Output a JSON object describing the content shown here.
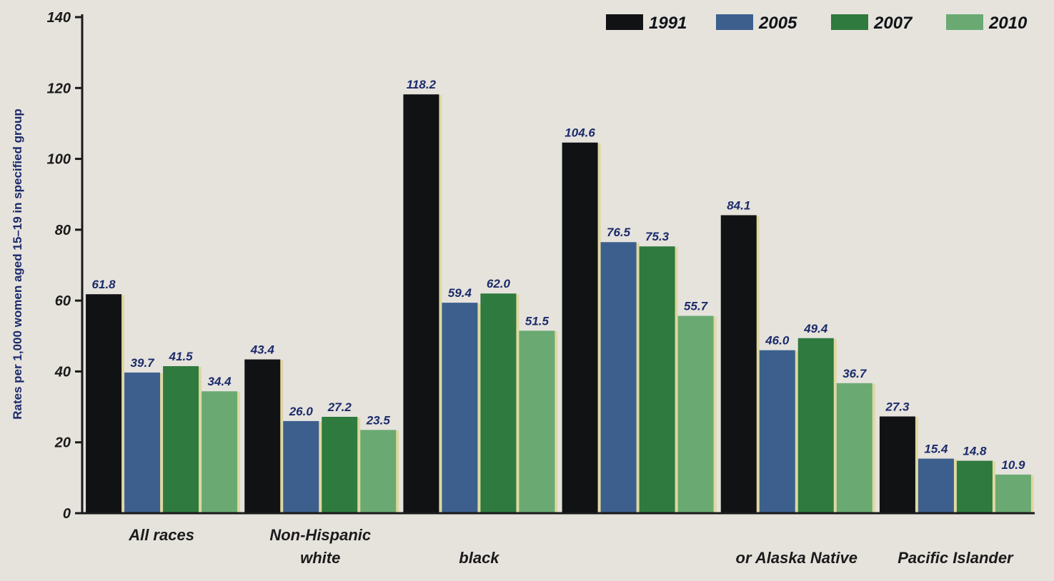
{
  "chart_data": {
    "type": "bar",
    "ylabel": "Rates per 1,000 women aged 15–19 in specified group",
    "xlabel": "",
    "ylim": [
      0,
      140
    ],
    "yticks": [
      0,
      20,
      40,
      60,
      80,
      100,
      120,
      140
    ],
    "grid": false,
    "legend_position": "top-right",
    "categories": [
      [
        "All races"
      ],
      [
        "Non-Hispanic",
        "white"
      ],
      [
        "",
        "black"
      ],
      [
        ""
      ],
      [
        "",
        "or Alaska Native"
      ],
      [
        "",
        "Pacific Islander"
      ]
    ],
    "series": [
      {
        "name": "1991",
        "color": "#111214",
        "values": [
          61.8,
          43.4,
          118.2,
          104.6,
          84.1,
          27.3
        ]
      },
      {
        "name": "2005",
        "color": "#3c5f8e",
        "values": [
          39.7,
          26.0,
          59.4,
          76.5,
          46.0,
          15.4
        ]
      },
      {
        "name": "2007",
        "color": "#2f7a3e",
        "values": [
          41.5,
          27.2,
          62.0,
          75.3,
          49.4,
          14.8
        ]
      },
      {
        "name": "2010",
        "color": "#6aaa72",
        "values": [
          34.4,
          23.5,
          51.5,
          55.7,
          36.7,
          10.9
        ]
      }
    ],
    "value_labels": [
      [
        "61.8",
        "39.7",
        "41.5",
        "34.4"
      ],
      [
        "43.4",
        "26.0",
        "27.2",
        "23.5"
      ],
      [
        "118.2",
        "59.4",
        "62.0",
        "51.5"
      ],
      [
        "104.6",
        "76.5",
        "75.3",
        "55.7"
      ],
      [
        "84.1",
        "46.0",
        "49.4",
        "36.7"
      ],
      [
        "27.3",
        "15.4",
        "14.8",
        "10.9"
      ]
    ]
  }
}
